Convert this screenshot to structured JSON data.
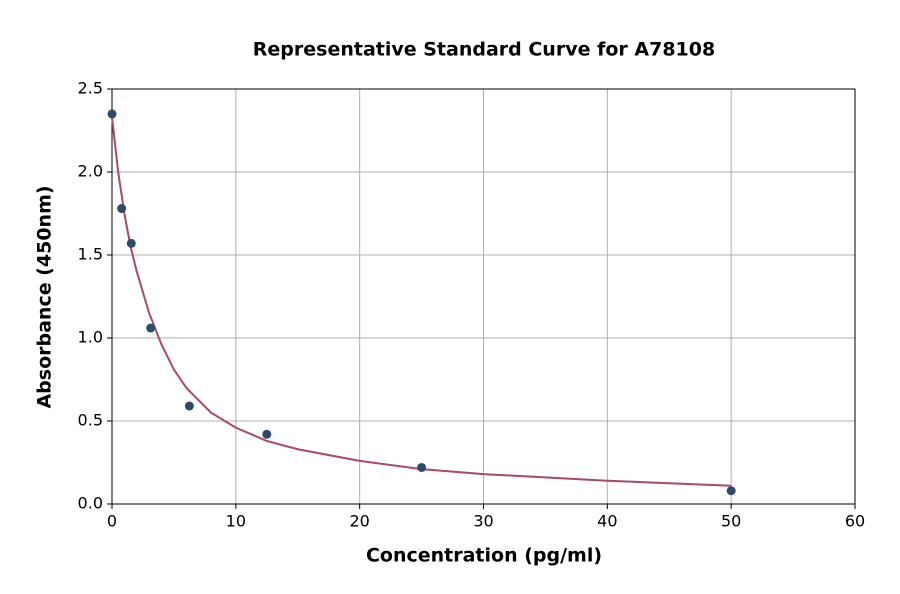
{
  "chart_data": {
    "type": "scatter",
    "title": "Representative Standard Curve for A78108",
    "x_label": "Concentration (pg/ml)",
    "y_label": "Absorbance (450nm)",
    "xlim": [
      0,
      60
    ],
    "xticks": [
      0,
      10,
      20,
      30,
      40,
      50,
      60
    ],
    "ylim": [
      0,
      2.5
    ],
    "yticks": [
      {
        "value": 0,
        "label": "0.0"
      },
      {
        "value": 0.5,
        "label": "0.5"
      },
      {
        "value": 1,
        "label": "1.0"
      },
      {
        "value": 1.5,
        "label": "1.5"
      },
      {
        "value": 2,
        "label": "2.0"
      },
      {
        "value": 2.5,
        "label": "2.5"
      }
    ],
    "grid": true,
    "series": [
      {
        "type": "scatter",
        "color": "#2e4a6b",
        "x": [
          0,
          0.78,
          1.56,
          3.125,
          6.25,
          12.5,
          25,
          50
        ],
        "values": [
          2.35,
          1.78,
          1.57,
          1.06,
          0.59,
          0.42,
          0.22,
          0.08
        ]
      },
      {
        "type": "line",
        "color": "#a8486a",
        "x": [
          0,
          0.5,
          1,
          1.5,
          2,
          3,
          4,
          5,
          6,
          8,
          10,
          12.5,
          15,
          20,
          25,
          30,
          40,
          50
        ],
        "values": [
          2.33,
          2.0,
          1.75,
          1.55,
          1.4,
          1.15,
          0.96,
          0.81,
          0.7,
          0.55,
          0.46,
          0.38,
          0.33,
          0.26,
          0.21,
          0.18,
          0.14,
          0.11
        ]
      }
    ]
  }
}
